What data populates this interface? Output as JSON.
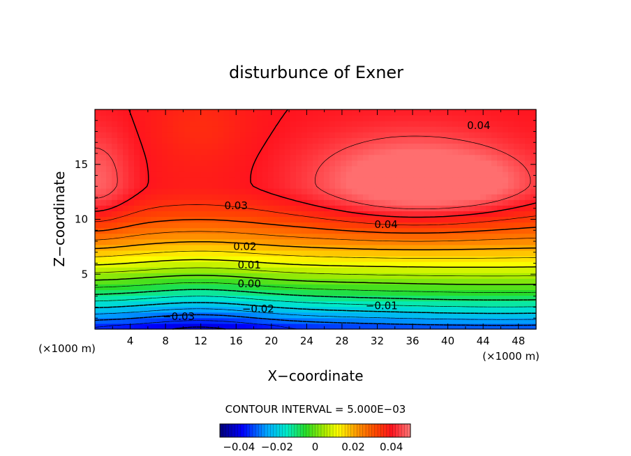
{
  "chart_data": {
    "type": "heatmap",
    "title": "disturbunce of Exner",
    "xlabel": "X−coordinate",
    "ylabel": "Z−coordinate",
    "x_unit": "(×1000 m)",
    "y_unit": "(×1000 m)",
    "xlim": [
      0,
      50
    ],
    "ylim": [
      0,
      20
    ],
    "x_ticks": [
      4,
      8,
      12,
      16,
      20,
      24,
      28,
      32,
      36,
      40,
      44,
      48
    ],
    "y_ticks": [
      5,
      10,
      15
    ],
    "contour_interval_text": "CONTOUR INTERVAL = 5.000E−03",
    "contour_labels": [
      {
        "text": "0.04",
        "x": 43.5,
        "z": 18.5
      },
      {
        "text": "0.04",
        "x": 33.0,
        "z": 9.5
      },
      {
        "text": "0.03",
        "x": 16.0,
        "z": 11.2
      },
      {
        "text": "0.02",
        "x": 17.0,
        "z": 7.5
      },
      {
        "text": "0.01",
        "x": 17.5,
        "z": 5.8
      },
      {
        "text": "0.00",
        "x": 17.5,
        "z": 4.1
      },
      {
        "text": "−0.01",
        "x": 32.5,
        "z": 2.1
      },
      {
        "text": "−0.02",
        "x": 18.5,
        "z": 1.8
      },
      {
        "text": "−0.03",
        "x": 9.5,
        "z": 1.1
      }
    ],
    "colorbar": {
      "range": [
        -0.05,
        0.05
      ],
      "tick_labels": [
        "−0.04",
        "−0.02",
        "0",
        "0.02",
        "0.04"
      ],
      "tick_values": [
        -0.04,
        -0.02,
        0,
        0.02,
        0.04
      ]
    }
  }
}
